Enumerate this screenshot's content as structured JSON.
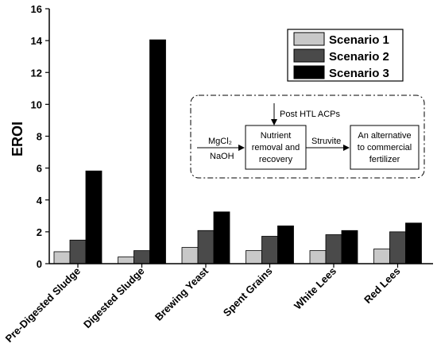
{
  "chart_data": {
    "type": "bar",
    "ylabel": "EROI",
    "ylim": [
      0,
      16
    ],
    "yticks": [
      "0",
      "2",
      "4",
      "6",
      "8",
      "10",
      "12",
      "14",
      "16"
    ],
    "categories": [
      "Pre-Digested Sludge",
      "Digested Sludge",
      "Brewing Yeast",
      "Spent Grains",
      "White Lees",
      "Red Lees"
    ],
    "series": [
      {
        "name": "Scenario 1",
        "color": "#c8c8c8",
        "values": [
          0.75,
          0.42,
          1.02,
          0.82,
          0.82,
          0.92
        ]
      },
      {
        "name": "Scenario 2",
        "color": "#4a4a4a",
        "values": [
          1.48,
          0.82,
          2.08,
          1.72,
          1.82,
          2.0
        ]
      },
      {
        "name": "Scenario 3",
        "color": "#000000",
        "values": [
          5.82,
          14.05,
          3.25,
          2.37,
          2.08,
          2.55
        ]
      }
    ],
    "legend_position": "top-right",
    "grid": false
  },
  "inset": {
    "top_input": "Post HTL ACPs",
    "left_input_1": "MgCl₂",
    "left_input_2": "NaOH",
    "box1": [
      "Nutrient",
      "removal and",
      "recovery"
    ],
    "arrow_label": "Struvite",
    "box2": [
      "An alternative",
      "to  commercial",
      "fertilizer"
    ]
  }
}
